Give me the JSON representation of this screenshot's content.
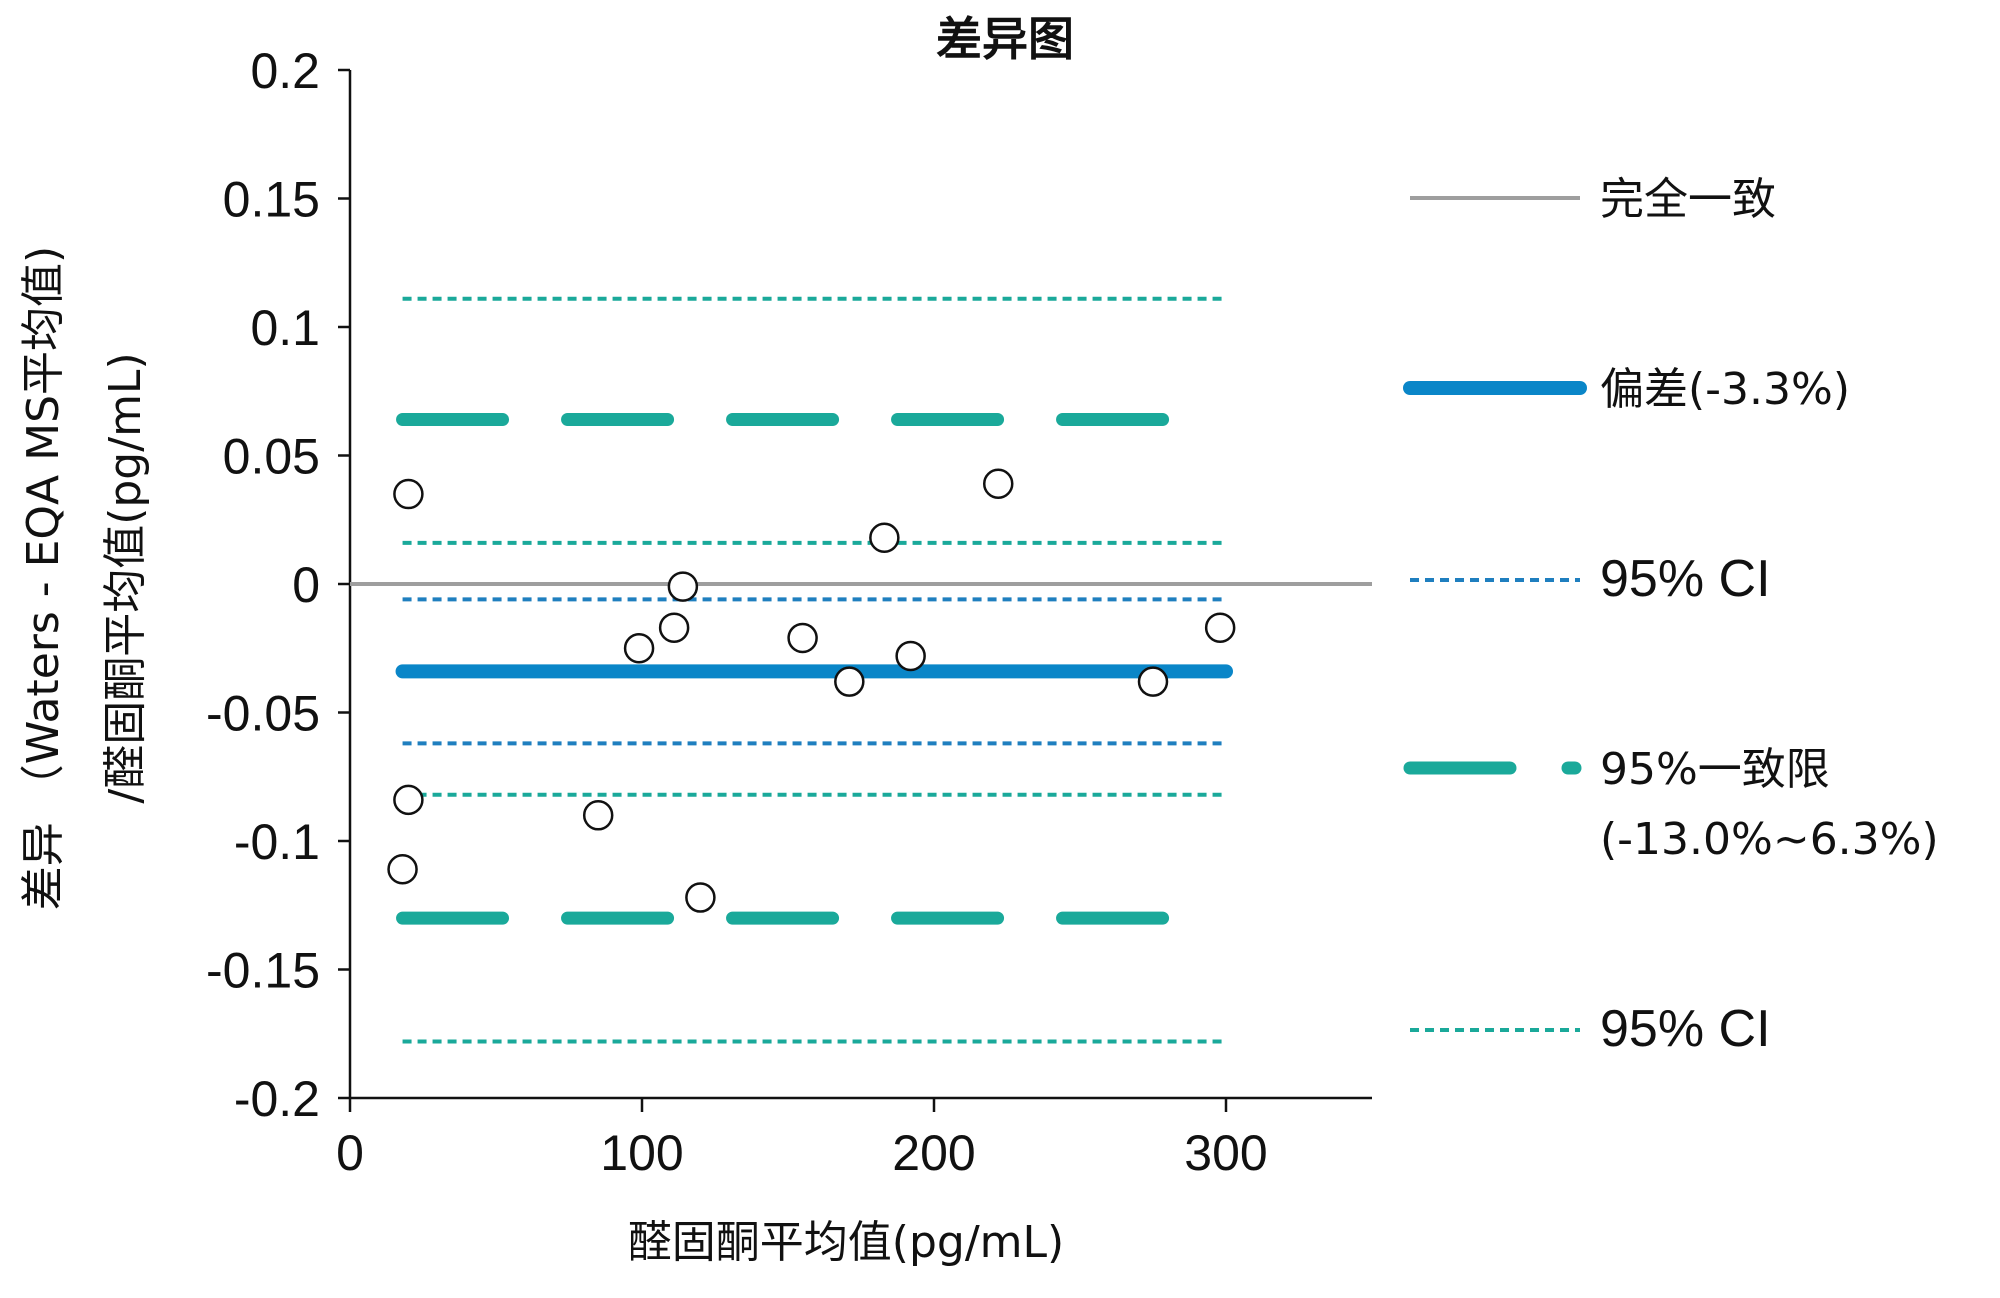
{
  "chart_data": {
    "type": "scatter",
    "title": "差异图",
    "xlabel": "醛固酮平均值(pg/mL)",
    "ylabel_line1": "差异 （Waters - EQA MS平均值)",
    "ylabel_line2": "/醛固酮平均值(pg/mL)",
    "xlim": [
      0,
      350
    ],
    "ylim": [
      -0.2,
      0.2
    ],
    "x_ticks": [
      0,
      100,
      200,
      300
    ],
    "x_tick_labels": [
      "0",
      "100",
      "200",
      "300"
    ],
    "y_ticks": [
      0.2,
      0.15,
      0.1,
      0.05,
      0,
      -0.05,
      -0.1,
      -0.15,
      -0.2
    ],
    "y_tick_labels": [
      "0.2",
      "0.15",
      "0.1",
      "0.05",
      "0",
      "-0.05",
      "-0.1",
      "-0.15",
      "-0.2"
    ],
    "grid": false,
    "legend_position": "right",
    "points": [
      {
        "x": 20,
        "y": 0.035
      },
      {
        "x": 20,
        "y": -0.084
      },
      {
        "x": 18,
        "y": -0.111
      },
      {
        "x": 85,
        "y": -0.09
      },
      {
        "x": 99,
        "y": -0.025
      },
      {
        "x": 111,
        "y": -0.017
      },
      {
        "x": 114,
        "y": -0.001
      },
      {
        "x": 120,
        "y": -0.122
      },
      {
        "x": 155,
        "y": -0.021
      },
      {
        "x": 171,
        "y": -0.038
      },
      {
        "x": 183,
        "y": 0.018
      },
      {
        "x": 192,
        "y": -0.028
      },
      {
        "x": 222,
        "y": 0.039
      },
      {
        "x": 275,
        "y": -0.038
      },
      {
        "x": 298,
        "y": -0.017
      }
    ],
    "reference_lines": [
      {
        "key": "agreement",
        "y": 0,
        "x_range": [
          0,
          350
        ],
        "style": "solid",
        "color": "#9e9e9e"
      },
      {
        "key": "bias",
        "y": -0.034,
        "x_range": [
          18,
          300
        ],
        "style": "thick",
        "color": "#0a86c8"
      },
      {
        "key": "bias_ci_upper",
        "y": -0.006,
        "x_range": [
          18,
          300
        ],
        "style": "dotted",
        "color": "#1f7fbf"
      },
      {
        "key": "bias_ci_lower",
        "y": -0.062,
        "x_range": [
          18,
          300
        ],
        "style": "dotted",
        "color": "#1f7fbf"
      },
      {
        "key": "loa_upper",
        "y": 0.064,
        "x_range": [
          18,
          282
        ],
        "style": "dashed",
        "color": "#1aa99a"
      },
      {
        "key": "loa_lower",
        "y": -0.13,
        "x_range": [
          18,
          282
        ],
        "style": "dashed",
        "color": "#1aa99a"
      },
      {
        "key": "loa_upper_ci_upper",
        "y": 0.111,
        "x_range": [
          18,
          300
        ],
        "style": "dotted",
        "color": "#1aa99a"
      },
      {
        "key": "loa_upper_ci_lower",
        "y": 0.016,
        "x_range": [
          18,
          300
        ],
        "style": "dotted",
        "color": "#1aa99a"
      },
      {
        "key": "loa_lower_ci_upper",
        "y": -0.082,
        "x_range": [
          18,
          300
        ],
        "style": "dotted",
        "color": "#1aa99a"
      },
      {
        "key": "loa_lower_ci_lower",
        "y": -0.178,
        "x_range": [
          18,
          300
        ],
        "style": "dotted",
        "color": "#1aa99a"
      }
    ],
    "legend": [
      {
        "label": "完全一致",
        "style": "solid",
        "color": "#9e9e9e"
      },
      {
        "label": "偏差(-3.3%)",
        "style": "thick",
        "color": "#0a86c8"
      },
      {
        "label": "95% CI",
        "style": "dotted",
        "color": "#1f7fbf"
      },
      {
        "label": "95%一致限",
        "label2": "(-13.0%~6.3%)",
        "style": "dashed",
        "color": "#1aa99a"
      },
      {
        "label": "95% CI",
        "style": "dotted",
        "color": "#1aa99a"
      }
    ]
  }
}
